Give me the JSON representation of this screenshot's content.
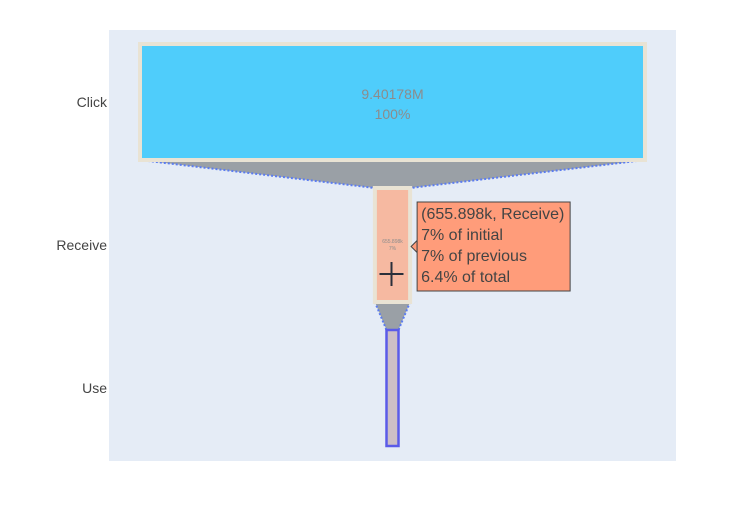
{
  "chart_data": {
    "type": "funnel",
    "title": "",
    "categories": [
      "Click",
      "Receive",
      "Use"
    ],
    "values": [
      9401780,
      655898,
      164000
    ],
    "value_labels": [
      "9.40178M",
      "655.898k",
      ""
    ],
    "percent_labels": [
      "100%",
      "7%",
      ""
    ],
    "colors": {
      "plot_bg": "#e5ecf6",
      "paper_bg": "#ffffff",
      "bars": [
        "#4fcdfb",
        "#f6b9a1",
        "#cdbfc6"
      ],
      "bar_lines": [
        "#e9e3d4",
        "#e9e3d4",
        "#5b5be8"
      ],
      "connector_fill": "#9aa0a6",
      "connector_line": "#5b7cf0",
      "tooltip_bg": "#ff9c7a",
      "tooltip_border": "#444444",
      "tick_text": "#444444",
      "bar_text": "#8c8c8c"
    },
    "tooltip": {
      "category_index": 1,
      "lines": [
        "(655.898k, Receive)",
        "7% of initial",
        "7% of previous",
        "6.4% of total"
      ]
    }
  }
}
